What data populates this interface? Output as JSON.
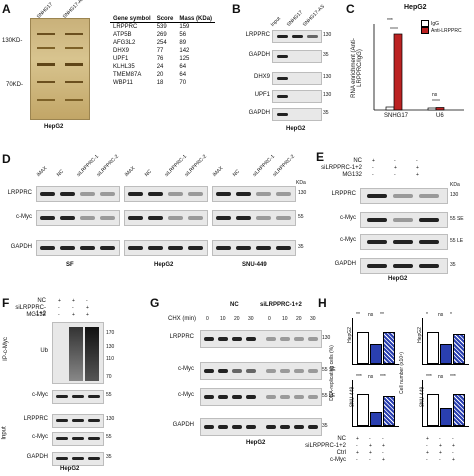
{
  "panels": {
    "A": {
      "label": "A",
      "lanes": [
        "SNHG17",
        "SNHG17-AS"
      ],
      "markers": [
        "130KD-",
        "70KD-"
      ],
      "caption": "HepG2",
      "table_headers": [
        "Gene symbol",
        "Score",
        "Mass (KDa)"
      ],
      "table_rows": [
        [
          "LRPPRC",
          "539",
          "159"
        ],
        [
          "ATP5B",
          "269",
          "56"
        ],
        [
          "AFG3L2",
          "254",
          "89"
        ],
        [
          "DHX9",
          "77",
          "142"
        ],
        [
          "UPF1",
          "76",
          "125"
        ],
        [
          "KLHL35",
          "24",
          "64"
        ],
        [
          "TMEM87A",
          "20",
          "64"
        ],
        [
          "WBP11",
          "18",
          "70"
        ]
      ]
    },
    "B": {
      "label": "B",
      "lanes": [
        "Input",
        "SNHG17",
        "SNHG17-AS"
      ],
      "rows": [
        "LRPPRC",
        "GAPDH",
        "DHX9",
        "UPF1",
        "GAPDH"
      ],
      "markers": [
        "130",
        "35",
        "130",
        "130",
        "35"
      ],
      "caption": "HepG2"
    },
    "C": {
      "label": "C",
      "title": "HepG2",
      "legend": [
        "IgG",
        "Anti-LRPPRC"
      ],
      "ylabel": "RNA enrichment (Anti-LRPPRC/IgG)",
      "sig": [
        "***",
        "ns"
      ]
    },
    "D": {
      "label": "D",
      "lanes": [
        "iMAX",
        "NC",
        "siLRPPRC-1",
        "siLRPPRC-2"
      ],
      "rows": [
        "LRPPRC",
        "c-Myc",
        "GAPDH"
      ],
      "kda_unit": "KDa",
      "markers": [
        "130",
        "55",
        "35"
      ],
      "groups": [
        "SF",
        "HepG2",
        "SNU-449"
      ]
    },
    "E": {
      "label": "E",
      "conditions": [
        "NC",
        "siLRPPRC-1+2",
        "MG132"
      ],
      "cond_marks": [
        [
          "+",
          "-",
          "-"
        ],
        [
          "-",
          "+",
          "+"
        ],
        [
          "-",
          "-",
          "+"
        ]
      ],
      "rows": [
        "LRPPRC",
        "c-Myc",
        "c-Myc",
        "GAPDH"
      ],
      "kda_unit": "KDa",
      "markers": [
        "130",
        "55 SE",
        "55 LE",
        "35"
      ],
      "caption": "HepG2"
    },
    "F": {
      "label": "F",
      "conditions": [
        "NC",
        "siLRPPRC-1+2",
        "MG132"
      ],
      "cond_marks": [
        [
          "+",
          "+",
          "-"
        ],
        [
          "-",
          "-",
          "+"
        ],
        [
          "-",
          "+",
          "+"
        ]
      ],
      "groups": [
        "IP-c-Myc",
        "Input"
      ],
      "rows": [
        "Ub",
        "c-Myc",
        "LRPPRC",
        "c-Myc",
        "GAPDH"
      ],
      "markers": [
        "170",
        "130",
        "110",
        "70",
        "55",
        "130",
        "55",
        "35"
      ],
      "caption": "HepG2"
    },
    "G": {
      "label": "G",
      "chx": "CHX (min)",
      "groups": [
        "NC",
        "siLRPPRC-1+2"
      ],
      "times": [
        "0",
        "10",
        "20",
        "30",
        "0",
        "10",
        "20",
        "30"
      ],
      "rows": [
        "LRPPRC",
        "c-Myc",
        "c-Myc",
        "GAPDH"
      ],
      "markers": [
        "130",
        "55 SE",
        "55 LE",
        "35"
      ],
      "caption": "HepG2"
    },
    "H": {
      "label": "H",
      "ylabel_left": "DNA-replicating cells (%)",
      "ylabel_right": "Cell number (x10⁴)",
      "cells": [
        "HepG2",
        "SNU-449"
      ],
      "sig_rows": [
        [
          "**",
          "ns",
          "**"
        ],
        [
          "*",
          "ns",
          "*"
        ],
        [
          "***",
          "ns",
          "***"
        ],
        [
          "***",
          "ns",
          "***"
        ]
      ],
      "conditions": [
        "NC",
        "siLRPPRC-1+2",
        "Ctrl",
        "c-Myc"
      ],
      "cond_marks": [
        [
          "+",
          "-",
          "-"
        ],
        [
          "-",
          "+",
          "+"
        ],
        [
          "+",
          "+",
          "-"
        ],
        [
          "-",
          "-",
          "+"
        ]
      ]
    }
  }
}
